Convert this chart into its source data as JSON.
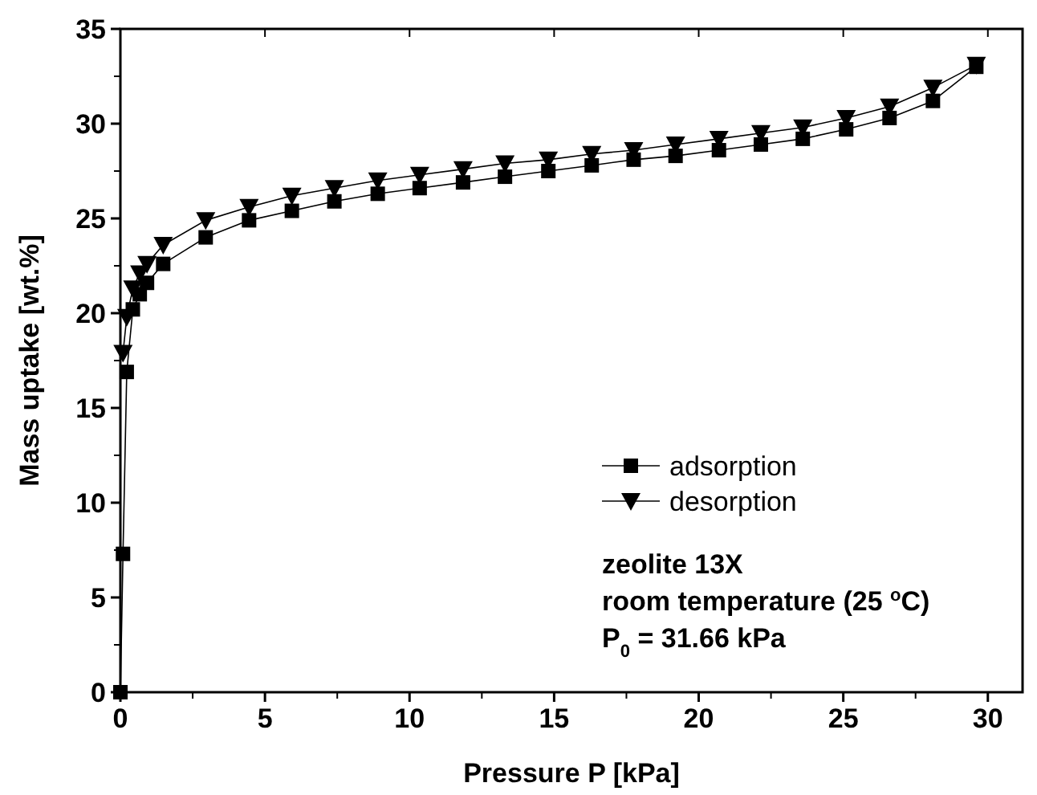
{
  "chart_data": {
    "type": "line",
    "xlabel": "Pressure P [kPa]",
    "ylabel": "Mass uptake [wt.%]",
    "xlim": [
      0,
      31.2
    ],
    "xticks": [
      0,
      5,
      10,
      15,
      20,
      25,
      30
    ],
    "ylim": [
      0,
      35
    ],
    "yticks": [
      0,
      5,
      10,
      15,
      20,
      25,
      30,
      35
    ],
    "grid": false,
    "legend": "bottom right",
    "line_style": "solid",
    "series": [
      {
        "name": "adsorption",
        "color": "#000000",
        "marker": "square",
        "x": [
          0,
          0.09,
          0.22,
          0.43,
          0.67,
          0.92,
          1.48,
          2.95,
          4.45,
          5.93,
          7.4,
          8.9,
          10.35,
          11.85,
          13.3,
          14.8,
          16.3,
          17.75,
          19.2,
          20.7,
          22.15,
          23.6,
          25.1,
          26.6,
          28.1,
          29.6
        ],
        "values": [
          0,
          7.3,
          16.9,
          20.2,
          21.0,
          21.6,
          22.6,
          24.0,
          24.9,
          25.4,
          25.9,
          26.3,
          26.6,
          26.9,
          27.2,
          27.5,
          27.8,
          28.1,
          28.3,
          28.6,
          28.9,
          29.2,
          29.7,
          30.3,
          31.2,
          33.0
        ]
      },
      {
        "name": "desorption",
        "color": "#000000",
        "marker": "triangle",
        "x": [
          0.09,
          0.22,
          0.43,
          0.67,
          0.92,
          1.48,
          2.95,
          4.45,
          5.93,
          7.4,
          8.9,
          10.35,
          11.85,
          13.3,
          14.8,
          16.3,
          17.75,
          19.2,
          20.7,
          22.15,
          23.6,
          25.1,
          26.6,
          28.1,
          29.6
        ],
        "values": [
          17.9,
          19.8,
          21.3,
          22.1,
          22.6,
          23.6,
          24.9,
          25.6,
          26.2,
          26.6,
          27.0,
          27.3,
          27.6,
          27.9,
          28.1,
          28.4,
          28.6,
          28.9,
          29.2,
          29.5,
          29.8,
          30.3,
          30.9,
          31.9,
          33.1
        ]
      }
    ],
    "annotations": [
      "zeolite 13X",
      "room temperature (25 $^{o}$C)",
      "P$_{0}$ = 31.66 kPa"
    ]
  }
}
